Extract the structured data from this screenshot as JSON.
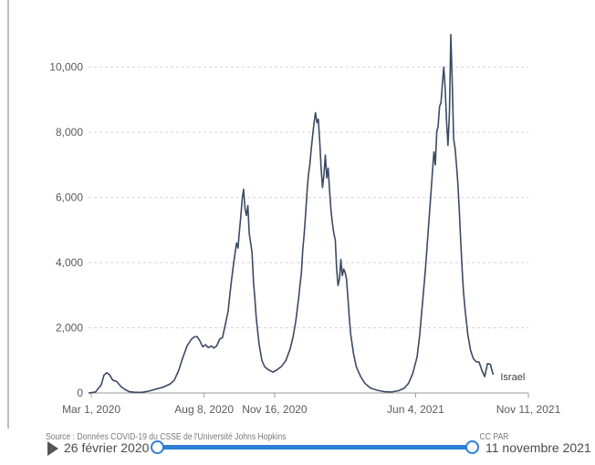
{
  "chart_data": {
    "type": "line",
    "title": "",
    "xlabel": "",
    "ylabel": "",
    "x_tick_labels": [
      "Mar 1, 2020",
      "Aug 8, 2020",
      "Nov 16, 2020",
      "Jun 4, 2021",
      "Nov 11, 2021"
    ],
    "x_tick_days": [
      4,
      164,
      264,
      464,
      624
    ],
    "x_start_date": "2020-02-26",
    "x_range_days": [
      0,
      624
    ],
    "y_ticks": [
      0,
      2000,
      4000,
      6000,
      8000,
      10000
    ],
    "y_tick_labels": [
      "0",
      "2,000",
      "4,000",
      "6,000",
      "8,000",
      "10,000"
    ],
    "ylim": [
      0,
      11500
    ],
    "grid": true,
    "series": [
      {
        "name": "Israel",
        "color": "#3c4a63",
        "points": [
          [
            0,
            0
          ],
          [
            10,
            30
          ],
          [
            18,
            250
          ],
          [
            22,
            550
          ],
          [
            26,
            620
          ],
          [
            30,
            550
          ],
          [
            34,
            400
          ],
          [
            40,
            350
          ],
          [
            46,
            200
          ],
          [
            52,
            100
          ],
          [
            58,
            40
          ],
          [
            66,
            20
          ],
          [
            76,
            20
          ],
          [
            86,
            60
          ],
          [
            96,
            120
          ],
          [
            106,
            180
          ],
          [
            116,
            280
          ],
          [
            122,
            400
          ],
          [
            128,
            700
          ],
          [
            134,
            1100
          ],
          [
            140,
            1450
          ],
          [
            146,
            1650
          ],
          [
            150,
            1720
          ],
          [
            154,
            1730
          ],
          [
            158,
            1600
          ],
          [
            162,
            1420
          ],
          [
            166,
            1480
          ],
          [
            170,
            1390
          ],
          [
            174,
            1440
          ],
          [
            178,
            1380
          ],
          [
            182,
            1450
          ],
          [
            186,
            1650
          ],
          [
            190,
            1700
          ],
          [
            194,
            2100
          ],
          [
            198,
            2500
          ],
          [
            202,
            3300
          ],
          [
            206,
            4000
          ],
          [
            210,
            4600
          ],
          [
            212,
            4450
          ],
          [
            214,
            4950
          ],
          [
            216,
            5400
          ],
          [
            218,
            5950
          ],
          [
            220,
            6250
          ],
          [
            222,
            5650
          ],
          [
            224,
            5450
          ],
          [
            226,
            5750
          ],
          [
            228,
            4900
          ],
          [
            230,
            4600
          ],
          [
            232,
            4300
          ],
          [
            234,
            3400
          ],
          [
            236,
            2900
          ],
          [
            238,
            2300
          ],
          [
            242,
            1500
          ],
          [
            246,
            1000
          ],
          [
            250,
            800
          ],
          [
            256,
            700
          ],
          [
            262,
            640
          ],
          [
            268,
            720
          ],
          [
            274,
            820
          ],
          [
            280,
            1000
          ],
          [
            286,
            1350
          ],
          [
            290,
            1700
          ],
          [
            294,
            2200
          ],
          [
            298,
            2900
          ],
          [
            300,
            3300
          ],
          [
            302,
            3700
          ],
          [
            304,
            4400
          ],
          [
            306,
            4900
          ],
          [
            308,
            5500
          ],
          [
            310,
            6200
          ],
          [
            312,
            6700
          ],
          [
            314,
            7000
          ],
          [
            316,
            7500
          ],
          [
            318,
            7900
          ],
          [
            320,
            8300
          ],
          [
            322,
            8600
          ],
          [
            324,
            8300
          ],
          [
            326,
            8400
          ],
          [
            328,
            7700
          ],
          [
            330,
            6900
          ],
          [
            332,
            6300
          ],
          [
            334,
            6700
          ],
          [
            336,
            7300
          ],
          [
            338,
            6600
          ],
          [
            340,
            6900
          ],
          [
            342,
            6200
          ],
          [
            344,
            5600
          ],
          [
            346,
            5200
          ],
          [
            348,
            4900
          ],
          [
            350,
            4700
          ],
          [
            352,
            3800
          ],
          [
            354,
            3300
          ],
          [
            356,
            3500
          ],
          [
            358,
            4100
          ],
          [
            360,
            3600
          ],
          [
            362,
            3800
          ],
          [
            364,
            3700
          ],
          [
            366,
            3500
          ],
          [
            368,
            2900
          ],
          [
            370,
            2300
          ],
          [
            372,
            1800
          ],
          [
            376,
            1200
          ],
          [
            380,
            800
          ],
          [
            386,
            500
          ],
          [
            392,
            300
          ],
          [
            400,
            150
          ],
          [
            410,
            80
          ],
          [
            420,
            40
          ],
          [
            430,
            30
          ],
          [
            440,
            70
          ],
          [
            448,
            150
          ],
          [
            454,
            300
          ],
          [
            460,
            600
          ],
          [
            466,
            1100
          ],
          [
            470,
            1800
          ],
          [
            474,
            2800
          ],
          [
            478,
            3800
          ],
          [
            482,
            5000
          ],
          [
            486,
            6200
          ],
          [
            488,
            6800
          ],
          [
            490,
            7400
          ],
          [
            492,
            7000
          ],
          [
            494,
            8000
          ],
          [
            496,
            8200
          ],
          [
            498,
            8800
          ],
          [
            500,
            8900
          ],
          [
            502,
            9500
          ],
          [
            504,
            10000
          ],
          [
            506,
            9300
          ],
          [
            508,
            8300
          ],
          [
            510,
            7600
          ],
          [
            512,
            8600
          ],
          [
            514,
            11000
          ],
          [
            516,
            9500
          ],
          [
            518,
            7800
          ],
          [
            520,
            7500
          ],
          [
            522,
            7000
          ],
          [
            524,
            6400
          ],
          [
            526,
            5600
          ],
          [
            528,
            4700
          ],
          [
            530,
            3800
          ],
          [
            532,
            3100
          ],
          [
            534,
            2600
          ],
          [
            538,
            1800
          ],
          [
            542,
            1300
          ],
          [
            546,
            1050
          ],
          [
            550,
            960
          ],
          [
            554,
            950
          ],
          [
            558,
            700
          ],
          [
            562,
            500
          ],
          [
            566,
            900
          ],
          [
            570,
            880
          ],
          [
            574,
            560
          ]
        ]
      }
    ]
  },
  "footer": {
    "source": "Source : Données COVID-19 du CSSE de l'Université Johns Hopkins",
    "license": "CC PAR"
  },
  "timeline": {
    "start_label": "26 février 2020",
    "end_label": "11 novembre 2021"
  }
}
